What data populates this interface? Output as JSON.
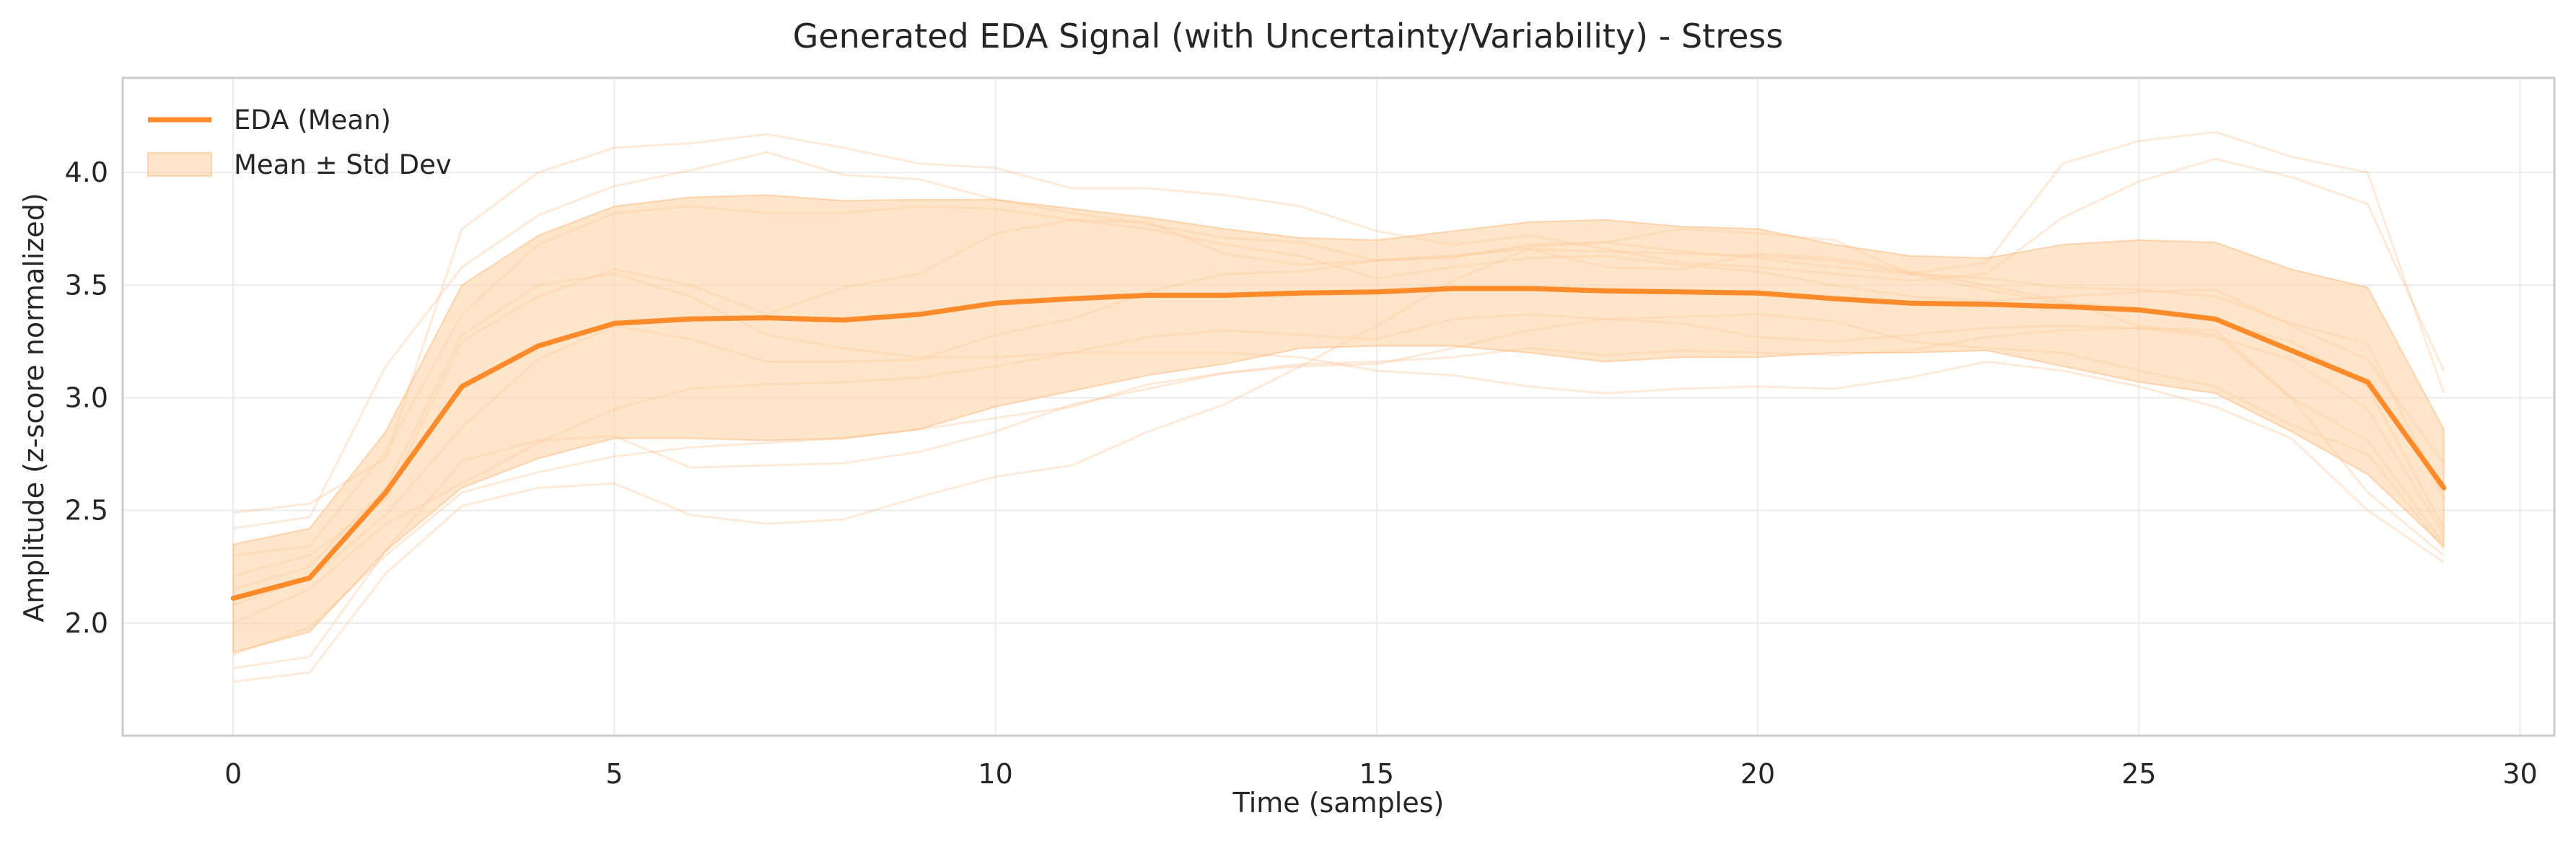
{
  "chart_data": {
    "type": "line",
    "title": "Generated EDA Signal (with Uncertainty/Variability) - Stress",
    "xlabel": "Time (samples)",
    "ylabel": "Amplitude (z-score normalized)",
    "xlim": [
      -1.45,
      30.45
    ],
    "ylim": [
      1.5,
      4.42
    ],
    "xticks": [
      0,
      5,
      10,
      15,
      20,
      25,
      30
    ],
    "yticks": [
      2.0,
      2.5,
      3.0,
      3.5,
      4.0
    ],
    "grid": true,
    "legend": {
      "placement": "top-left",
      "entries": [
        "EDA (Mean)",
        "Mean ± Std Dev"
      ]
    },
    "colors": {
      "mean_line": "#ff8a2a",
      "band_fill": "#ffcf9f",
      "band_edge": "#ffb06a",
      "samples": "#ffb27a",
      "grid": "#ebebeb",
      "frame": "#cccccc",
      "text": "#262626"
    },
    "x": [
      0,
      1,
      2,
      3,
      4,
      5,
      6,
      7,
      8,
      9,
      10,
      11,
      12,
      13,
      14,
      15,
      16,
      17,
      18,
      19,
      20,
      21,
      22,
      23,
      24,
      25,
      26,
      27,
      28,
      29
    ],
    "series": [
      {
        "name": "EDA (Mean)",
        "values": [
          2.11,
          2.2,
          2.58,
          3.05,
          3.23,
          3.33,
          3.35,
          3.355,
          3.345,
          3.37,
          3.42,
          3.44,
          3.455,
          3.455,
          3.465,
          3.47,
          3.485,
          3.485,
          3.475,
          3.47,
          3.465,
          3.44,
          3.42,
          3.415,
          3.405,
          3.39,
          3.35,
          3.21,
          3.07,
          2.6
        ]
      },
      {
        "name": "Mean ± Std Dev",
        "upper": [
          2.35,
          2.42,
          2.85,
          3.5,
          3.72,
          3.85,
          3.89,
          3.9,
          3.875,
          3.88,
          3.88,
          3.84,
          3.8,
          3.75,
          3.71,
          3.7,
          3.74,
          3.78,
          3.79,
          3.76,
          3.75,
          3.68,
          3.63,
          3.62,
          3.68,
          3.7,
          3.69,
          3.57,
          3.49,
          2.86
        ],
        "lower": [
          1.87,
          1.96,
          2.32,
          2.6,
          2.73,
          2.82,
          2.82,
          2.81,
          2.82,
          2.86,
          2.96,
          3.03,
          3.1,
          3.15,
          3.22,
          3.23,
          3.23,
          3.2,
          3.16,
          3.18,
          3.18,
          3.2,
          3.2,
          3.21,
          3.14,
          3.07,
          3.02,
          2.85,
          2.66,
          2.34
        ]
      }
    ],
    "sample_traces": [
      [
        2.49,
        2.53,
        2.73,
        3.75,
        4.0,
        4.11,
        4.13,
        4.17,
        4.11,
        4.04,
        4.02,
        3.93,
        3.93,
        3.9,
        3.85,
        3.74,
        3.68,
        3.72,
        3.66,
        3.6,
        3.58,
        3.55,
        3.52,
        3.55,
        3.8,
        3.96,
        4.06,
        3.98,
        3.86,
        3.12
      ],
      [
        2.42,
        2.47,
        3.14,
        3.58,
        3.81,
        3.94,
        4.01,
        4.09,
        3.99,
        3.97,
        3.88,
        3.82,
        3.77,
        3.71,
        3.69,
        3.61,
        3.63,
        3.67,
        3.69,
        3.65,
        3.62,
        3.58,
        3.55,
        3.6,
        4.04,
        4.14,
        4.18,
        4.07,
        4.0,
        3.02
      ],
      [
        2.3,
        2.34,
        2.76,
        3.37,
        3.68,
        3.82,
        3.85,
        3.82,
        3.82,
        3.85,
        3.84,
        3.79,
        3.75,
        3.68,
        3.63,
        3.53,
        3.58,
        3.62,
        3.63,
        3.59,
        3.56,
        3.5,
        3.45,
        3.43,
        3.45,
        3.47,
        3.48,
        3.32,
        3.17,
        2.71
      ],
      [
        2.21,
        2.3,
        2.55,
        3.25,
        3.45,
        3.57,
        3.5,
        3.37,
        3.49,
        3.55,
        3.73,
        3.79,
        3.78,
        3.64,
        3.59,
        3.61,
        3.62,
        3.68,
        3.69,
        3.75,
        3.73,
        3.7,
        3.55,
        3.53,
        3.49,
        3.48,
        3.45,
        3.33,
        3.24,
        2.55
      ],
      [
        2.08,
        2.2,
        2.48,
        2.87,
        3.17,
        3.32,
        3.26,
        3.16,
        3.16,
        3.17,
        3.28,
        3.35,
        3.47,
        3.55,
        3.56,
        3.61,
        3.63,
        3.66,
        3.65,
        3.64,
        3.63,
        3.61,
        3.55,
        3.48,
        3.42,
        3.4,
        3.34,
        3.25,
        3.05,
        2.42
      ],
      [
        2.0,
        2.15,
        2.44,
        2.62,
        2.8,
        2.95,
        3.04,
        3.06,
        3.07,
        3.09,
        3.14,
        3.2,
        3.27,
        3.3,
        3.28,
        3.26,
        3.35,
        3.37,
        3.35,
        3.33,
        3.27,
        3.25,
        3.28,
        3.31,
        3.32,
        3.31,
        3.27,
        3.17,
        2.95,
        2.39
      ],
      [
        1.86,
        1.98,
        2.3,
        2.58,
        2.67,
        2.74,
        2.78,
        2.8,
        2.82,
        2.86,
        2.91,
        2.96,
        3.06,
        3.11,
        3.15,
        3.16,
        3.18,
        3.22,
        3.19,
        3.21,
        3.2,
        3.19,
        3.21,
        3.27,
        3.3,
        3.31,
        3.3,
        3.0,
        2.81,
        2.35
      ],
      [
        1.8,
        1.85,
        2.32,
        2.72,
        2.81,
        2.83,
        2.69,
        2.7,
        2.71,
        2.76,
        2.85,
        2.97,
        3.04,
        3.11,
        3.14,
        3.15,
        3.22,
        3.3,
        3.35,
        3.36,
        3.37,
        3.34,
        3.25,
        3.22,
        3.2,
        3.12,
        3.05,
        2.88,
        2.75,
        2.33
      ],
      [
        1.74,
        1.78,
        2.22,
        2.52,
        2.6,
        2.62,
        2.48,
        2.44,
        2.46,
        2.56,
        2.65,
        2.7,
        2.85,
        2.97,
        3.14,
        3.32,
        3.52,
        3.66,
        3.58,
        3.57,
        3.64,
        3.62,
        3.56,
        3.5,
        3.43,
        3.32,
        3.28,
        3.0,
        2.58,
        2.3
      ],
      [
        2.15,
        2.25,
        2.6,
        3.28,
        3.5,
        3.55,
        3.45,
        3.28,
        3.22,
        3.18,
        3.18,
        3.2,
        3.2,
        3.2,
        3.18,
        3.12,
        3.1,
        3.05,
        3.02,
        3.04,
        3.05,
        3.04,
        3.09,
        3.16,
        3.12,
        3.05,
        2.96,
        2.82,
        2.5,
        2.27
      ]
    ]
  }
}
